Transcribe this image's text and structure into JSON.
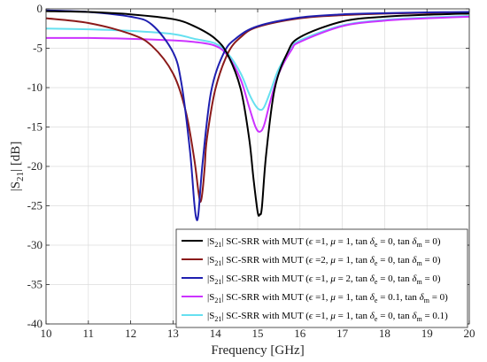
{
  "chart_data": {
    "type": "line",
    "xlabel": "Frequency [GHz]",
    "ylabel_parts": [
      "|S",
      "21",
      "| [dB]"
    ],
    "xlim": [
      10,
      20
    ],
    "ylim": [
      -40,
      0
    ],
    "xticks": [
      10,
      11,
      12,
      13,
      14,
      15,
      16,
      17,
      18,
      19,
      20
    ],
    "yticks": [
      0,
      -5,
      -10,
      -15,
      -20,
      -25,
      -30,
      -35,
      -40
    ],
    "xtick_labels": [
      "10",
      "11",
      "12",
      "13",
      "14",
      "15",
      "16",
      "17",
      "18",
      "19",
      "20"
    ],
    "ytick_labels": [
      "0",
      "-5",
      "-10",
      "-15",
      "-20",
      "-25",
      "-30",
      "-35",
      "-40"
    ],
    "grid": true,
    "legend_position": "bottom-right",
    "series": [
      {
        "name": "|S21| SC-SRR with MUT (ε=1, μ=1, tan δe=0, tan δm=0)",
        "legend_text": {
          "eps": "1",
          "mu": "1",
          "tde": "0",
          "tdm": "0"
        },
        "color": "#000000",
        "x": [
          10,
          11,
          12,
          13,
          13.5,
          14,
          14.3,
          14.6,
          14.8,
          14.9,
          15,
          15.05,
          15.1,
          15.2,
          15.4,
          15.7,
          16,
          17,
          18,
          19,
          20
        ],
        "y": [
          -0.3,
          -0.4,
          -0.7,
          -1.3,
          -2.2,
          -3.8,
          -5.9,
          -10.2,
          -16.5,
          -21.5,
          -25.8,
          -26.1,
          -25.2,
          -18.5,
          -10.2,
          -5.6,
          -3.6,
          -1.6,
          -1.0,
          -0.75,
          -0.6
        ]
      },
      {
        "name": "|S21| SC-SRR with MUT (ε=2, μ=1, tan δe=0, tan δm=0)",
        "legend_text": {
          "eps": "2",
          "mu": "1",
          "tde": "0",
          "tdm": "0"
        },
        "color": "#8B1A1A",
        "x": [
          10,
          11,
          12,
          12.5,
          13,
          13.3,
          13.5,
          13.6,
          13.65,
          13.7,
          13.75,
          13.8,
          14,
          14.3,
          14.6,
          15,
          16,
          17,
          18,
          19,
          20
        ],
        "y": [
          -1.2,
          -1.8,
          -3.2,
          -4.7,
          -8.2,
          -13.0,
          -19.0,
          -23.2,
          -24.5,
          -23.0,
          -20.0,
          -16.5,
          -10.2,
          -5.6,
          -3.6,
          -2.3,
          -1.2,
          -0.8,
          -0.6,
          -0.5,
          -0.45
        ]
      },
      {
        "name": "|S21| SC-SRR with MUT (ε=1, μ=2, tan δe=0, tan δm=0)",
        "legend_text": {
          "eps": "1",
          "mu": "2",
          "tde": "0",
          "tdm": "0"
        },
        "color": "#1F1FB0",
        "x": [
          10,
          11,
          12,
          12.5,
          13,
          13.2,
          13.4,
          13.5,
          13.55,
          13.6,
          13.7,
          13.9,
          14.2,
          14.5,
          15,
          16,
          17,
          18,
          19,
          20
        ],
        "y": [
          -0.2,
          -0.4,
          -1.0,
          -2.0,
          -5.5,
          -9.5,
          -18.0,
          -24.5,
          -26.6,
          -26.0,
          -19.5,
          -10.5,
          -5.6,
          -3.7,
          -2.2,
          -1.1,
          -0.7,
          -0.55,
          -0.45,
          -0.4
        ]
      },
      {
        "name": "|S21| SC-SRR with MUT (ε=1, μ=1, tan δe=0.1, tan δm=0)",
        "legend_text": {
          "eps": "1",
          "mu": "1",
          "tde": "0.1",
          "tdm": "0"
        },
        "color": "#CC33FF",
        "x": [
          10,
          11,
          12,
          13,
          13.5,
          14,
          14.3,
          14.6,
          14.8,
          14.95,
          15.05,
          15.15,
          15.3,
          15.5,
          15.8,
          16,
          17,
          18,
          19,
          20
        ],
        "y": [
          -3.7,
          -3.7,
          -3.8,
          -4.0,
          -4.2,
          -4.7,
          -6.0,
          -9.0,
          -12.5,
          -15.0,
          -15.6,
          -14.8,
          -11.7,
          -8.2,
          -5.2,
          -4.2,
          -2.2,
          -1.5,
          -1.2,
          -1.0
        ]
      },
      {
        "name": "|S21| SC-SRR with MUT (ε=1, μ=1, tan δe=0, tan δm=0.1)",
        "legend_text": {
          "eps": "1",
          "mu": "1",
          "tde": "0",
          "tdm": "0.1"
        },
        "color": "#66E0F0",
        "x": [
          10,
          11,
          12,
          13,
          13.5,
          14,
          14.3,
          14.6,
          14.8,
          14.95,
          15.05,
          15.15,
          15.3,
          15.5,
          15.8,
          16,
          17,
          18,
          19,
          20
        ],
        "y": [
          -2.5,
          -2.6,
          -2.8,
          -3.2,
          -3.8,
          -4.4,
          -5.7,
          -8.2,
          -10.8,
          -12.3,
          -12.8,
          -12.5,
          -10.5,
          -7.6,
          -5.0,
          -4.0,
          -2.1,
          -1.4,
          -1.1,
          -0.9
        ]
      }
    ]
  }
}
